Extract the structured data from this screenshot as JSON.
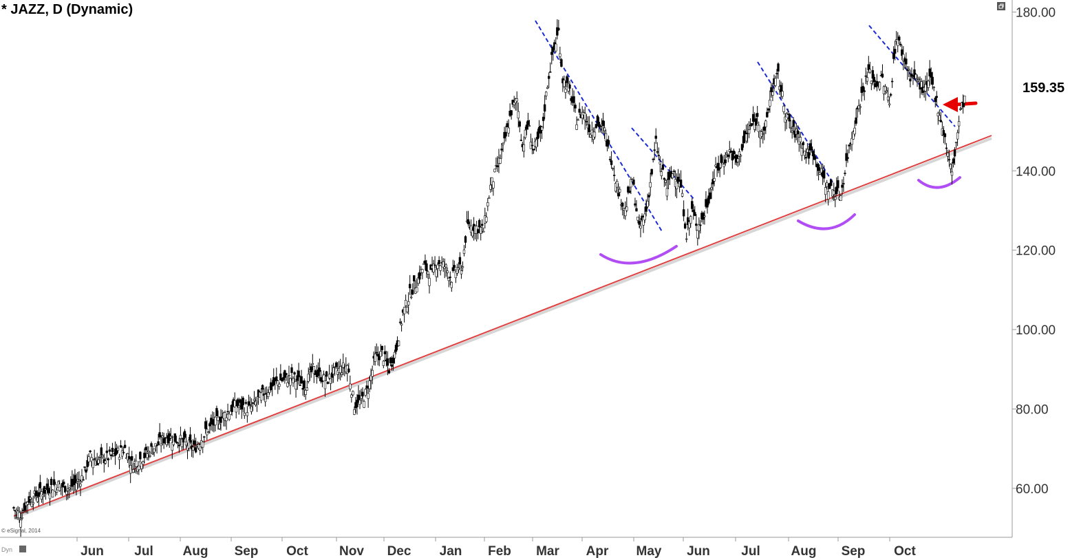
{
  "chart_data": {
    "type": "candlestick",
    "title": "* JAZZ, D (Dynamic)",
    "ylim": [
      47,
      182
    ],
    "y_ticks": [
      "180.00",
      "140.00",
      "120.00",
      "100.00",
      "80.00",
      "60.00"
    ],
    "x_ticks": [
      "Jun",
      "Jul",
      "Aug",
      "Sep",
      "Oct",
      "Nov",
      "Dec",
      "Jan",
      "Feb",
      "Mar",
      "Apr",
      "May",
      "Jun",
      "Jul",
      "Aug",
      "Sep",
      "Oct"
    ],
    "last_price": "159.35",
    "copyright": "© eSignal, 2014",
    "dyn_label": "Dyn",
    "grid": false,
    "close_series": [
      [
        0,
        55
      ],
      [
        5,
        53
      ],
      [
        10,
        57
      ],
      [
        20,
        59
      ],
      [
        30,
        61
      ],
      [
        40,
        60
      ],
      [
        50,
        63
      ],
      [
        55,
        68
      ],
      [
        60,
        67
      ],
      [
        70,
        68
      ],
      [
        80,
        70
      ],
      [
        85,
        66
      ],
      [
        90,
        67
      ],
      [
        100,
        70
      ],
      [
        110,
        73
      ],
      [
        120,
        72
      ],
      [
        130,
        70
      ],
      [
        140,
        75
      ],
      [
        150,
        78
      ],
      [
        160,
        81
      ],
      [
        170,
        80
      ],
      [
        180,
        84
      ],
      [
        190,
        87
      ],
      [
        200,
        88
      ],
      [
        210,
        86
      ],
      [
        215,
        90
      ],
      [
        225,
        87
      ],
      [
        230,
        89
      ],
      [
        240,
        91
      ],
      [
        245,
        81
      ],
      [
        250,
        82
      ],
      [
        255,
        85
      ],
      [
        260,
        93
      ],
      [
        265,
        94
      ],
      [
        270,
        90
      ],
      [
        275,
        95
      ],
      [
        280,
        104
      ],
      [
        285,
        109
      ],
      [
        290,
        112
      ],
      [
        295,
        116
      ],
      [
        300,
        114
      ],
      [
        305,
        117
      ],
      [
        310,
        116
      ],
      [
        315,
        113
      ],
      [
        320,
        116
      ],
      [
        322,
        114
      ],
      [
        326,
        126
      ],
      [
        332,
        126
      ],
      [
        338,
        125
      ],
      [
        343,
        136
      ],
      [
        348,
        141
      ],
      [
        353,
        147
      ],
      [
        358,
        155
      ],
      [
        362,
        158
      ],
      [
        366,
        146
      ],
      [
        370,
        152
      ],
      [
        374,
        145
      ],
      [
        380,
        150
      ],
      [
        384,
        162
      ],
      [
        388,
        170
      ],
      [
        392,
        175
      ],
      [
        395,
        163
      ],
      [
        400,
        160
      ],
      [
        405,
        153
      ],
      [
        410,
        155
      ],
      [
        415,
        150
      ],
      [
        420,
        152
      ],
      [
        425,
        150
      ],
      [
        430,
        143
      ],
      [
        435,
        135
      ],
      [
        440,
        130
      ],
      [
        445,
        138
      ],
      [
        450,
        125
      ],
      [
        455,
        130
      ],
      [
        458,
        137
      ],
      [
        462,
        147
      ],
      [
        466,
        140
      ],
      [
        470,
        136
      ],
      [
        475,
        140
      ],
      [
        480,
        136
      ],
      [
        484,
        124
      ],
      [
        488,
        130
      ],
      [
        492,
        126
      ],
      [
        496,
        128
      ],
      [
        500,
        133
      ],
      [
        505,
        140
      ],
      [
        510,
        142
      ],
      [
        515,
        145
      ],
      [
        520,
        142
      ],
      [
        525,
        147
      ],
      [
        530,
        151
      ],
      [
        535,
        153
      ],
      [
        540,
        149
      ],
      [
        545,
        160
      ],
      [
        550,
        164
      ],
      [
        555,
        155
      ],
      [
        560,
        150
      ],
      [
        565,
        149
      ],
      [
        570,
        144
      ],
      [
        575,
        145
      ],
      [
        580,
        140
      ],
      [
        585,
        136
      ],
      [
        590,
        135
      ],
      [
        595,
        134
      ],
      [
        600,
        144
      ],
      [
        605,
        152
      ],
      [
        610,
        159
      ],
      [
        615,
        165
      ],
      [
        620,
        162
      ],
      [
        625,
        163
      ],
      [
        630,
        157
      ],
      [
        635,
        174
      ],
      [
        640,
        169
      ],
      [
        645,
        164
      ],
      [
        650,
        163
      ],
      [
        655,
        160
      ],
      [
        660,
        163
      ],
      [
        665,
        156
      ],
      [
        670,
        148
      ],
      [
        675,
        139
      ],
      [
        678,
        147
      ],
      [
        681,
        155
      ],
      [
        684,
        158
      ]
    ],
    "annotations": {
      "support_line": "red rising trendline",
      "resistance_lines": "blue dashed falling trendlines",
      "cups": "purple arcs",
      "arrow": "red arrow"
    },
    "colors": {
      "trendline": "#e04040",
      "dashed": "#1a2bd6",
      "cup": "#b14df5",
      "arrow": "#e60000",
      "axis": "#999999"
    }
  }
}
